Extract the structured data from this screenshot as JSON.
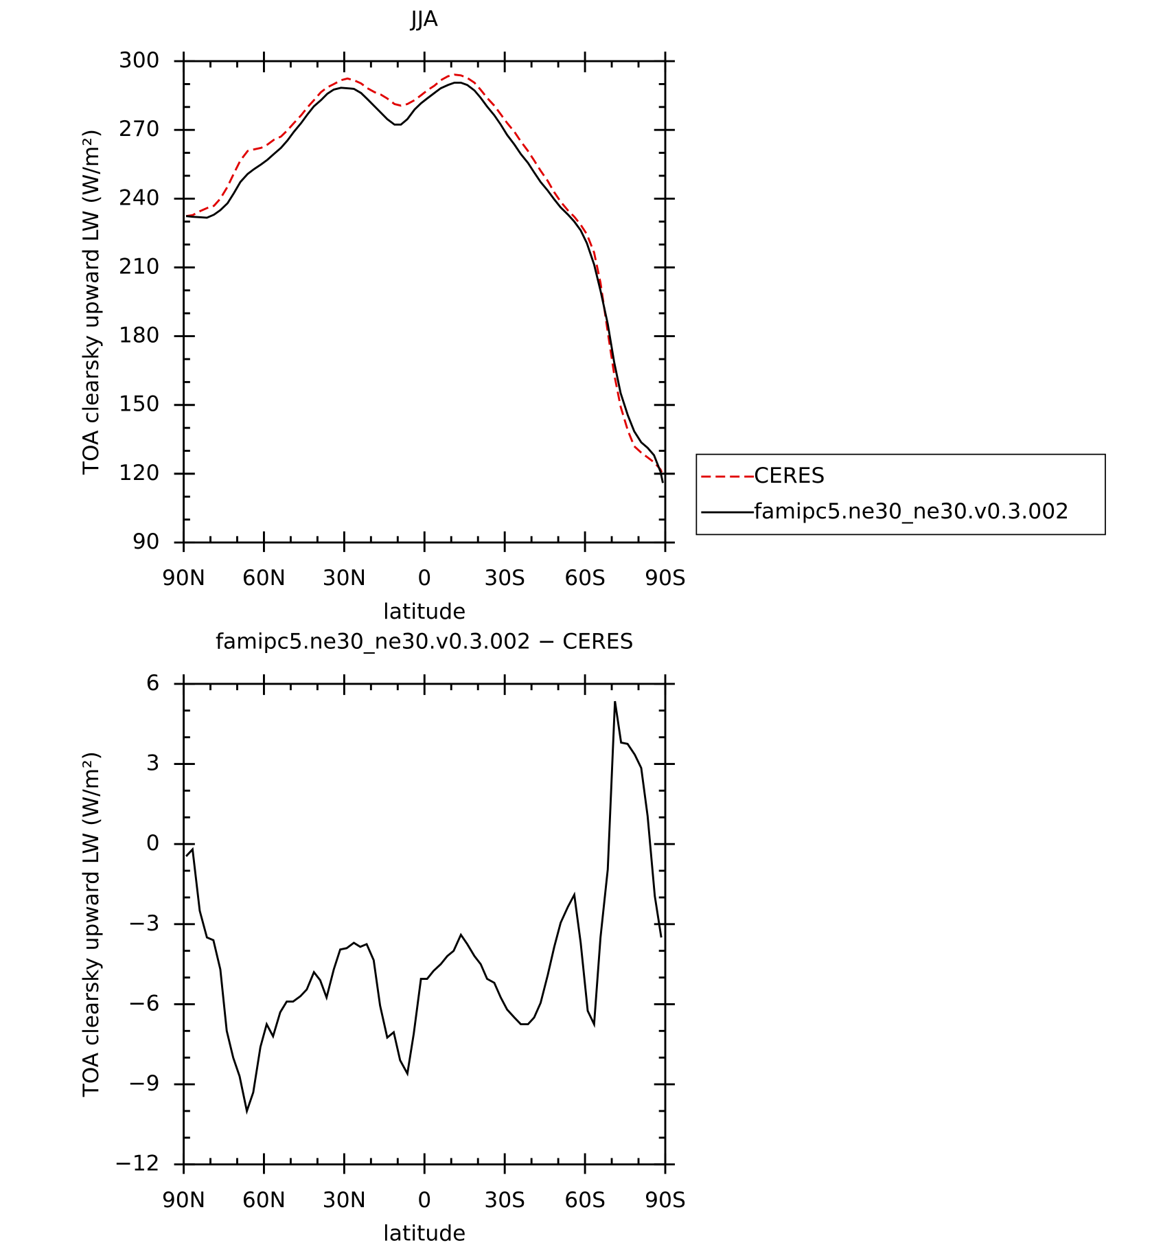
{
  "chart_data": [
    {
      "type": "line",
      "title": "JJA",
      "xlabel": "latitude",
      "ylabel": "TOA clearsky upward LW (W/m²)",
      "xlim": [
        90,
        -90
      ],
      "xticks": [
        {
          "value": 90,
          "label": "90N"
        },
        {
          "value": 60,
          "label": "60N"
        },
        {
          "value": 30,
          "label": "30N"
        },
        0,
        {
          "value": -30,
          "label": "30S"
        },
        {
          "value": -60,
          "label": "60S"
        },
        {
          "value": -90,
          "label": "90S"
        }
      ],
      "ylim": [
        90,
        300
      ],
      "yticks": [
        90,
        120,
        150,
        180,
        210,
        240,
        270,
        300
      ],
      "legend": "right",
      "x": [
        89.1,
        86.7,
        84.0,
        81.3,
        78.7,
        76.3,
        73.6,
        71.2,
        68.8,
        66.1,
        63.7,
        61.0,
        58.7,
        56.3,
        53.6,
        51.2,
        48.8,
        46.1,
        43.7,
        41.3,
        38.7,
        36.3,
        33.9,
        31.2,
        28.8,
        26.4,
        23.7,
        21.3,
        18.7,
        16.3,
        13.9,
        11.2,
        8.8,
        6.4,
        3.7,
        1.3,
        -1.0,
        -3.7,
        -6.1,
        -8.8,
        -11.2,
        -13.6,
        -16.0,
        -18.7,
        -21.0,
        -23.4,
        -26.1,
        -28.5,
        -30.9,
        -33.6,
        -36.0,
        -38.7,
        -41.0,
        -43.4,
        -46.1,
        -48.5,
        -50.9,
        -53.6,
        -56.0,
        -58.4,
        -60.7,
        -63.4,
        -65.8,
        -68.5,
        -70.9,
        -73.3,
        -76.0,
        -78.4,
        -81.0,
        -83.4,
        -85.8,
        -88.2,
        -89.1
      ],
      "series": [
        {
          "name": "CERES",
          "color": "#e00000",
          "style": "dashed",
          "values": [
            232.4,
            232.8,
            234.5,
            235.9,
            236.9,
            240,
            245.2,
            251.1,
            256.7,
            260.8,
            261.5,
            262.2,
            263.6,
            265.7,
            267.1,
            269.9,
            273,
            276.4,
            279.9,
            283,
            286.5,
            288.6,
            290,
            291.7,
            292.4,
            291.7,
            290.3,
            288.2,
            286.5,
            285.4,
            283.7,
            281.3,
            280.6,
            281.3,
            283,
            285.1,
            287.2,
            289.3,
            291.7,
            293.4,
            294.1,
            293.8,
            292.7,
            290.6,
            287.5,
            284,
            280.6,
            276.8,
            273,
            269.2,
            265,
            260.8,
            256.7,
            252.2,
            247.7,
            242.8,
            238.7,
            234.9,
            232.1,
            228.6,
            224.5,
            216.5,
            203.3,
            181.8,
            163.5,
            149.3,
            138.9,
            132,
            129.2,
            127.1,
            125,
            121.9,
            119.5
          ]
        },
        {
          "name": "famipc5.ne30_ne30.v0.3.002",
          "color": "#000000",
          "style": "solid",
          "values": [
            232.4,
            232.1,
            231.9,
            231.7,
            233,
            235,
            238,
            242.5,
            247.3,
            250.8,
            252.9,
            255,
            257,
            259.5,
            262.2,
            265.4,
            269.2,
            273,
            276.8,
            280.3,
            283,
            285.8,
            287.6,
            288.4,
            288.2,
            287.9,
            286.1,
            283.4,
            280.3,
            277.5,
            274.7,
            272.3,
            272.3,
            274.7,
            278.9,
            281.6,
            283.7,
            286.1,
            288.2,
            289.6,
            290.6,
            290.6,
            289.6,
            287.2,
            284,
            280.2,
            276.4,
            272.3,
            267.8,
            263.6,
            259.5,
            255.6,
            251.5,
            247.3,
            243.5,
            239.7,
            236.2,
            233.1,
            230,
            226.2,
            220.6,
            211.3,
            199.9,
            185.3,
            168.7,
            155.2,
            145.5,
            138.5,
            133.7,
            131.3,
            128.1,
            120.9,
            116
          ]
        }
      ]
    },
    {
      "type": "line",
      "title": "famipc5.ne30_ne30.v0.3.002 − CERES",
      "xlabel": "latitude",
      "ylabel": "TOA clearsky upward LW (W/m²)",
      "xlim": [
        90,
        -90
      ],
      "xticks": [
        {
          "value": 90,
          "label": "90N"
        },
        {
          "value": 60,
          "label": "60N"
        },
        {
          "value": 30,
          "label": "30N"
        },
        0,
        {
          "value": -30,
          "label": "30S"
        },
        {
          "value": -60,
          "label": "60S"
        },
        {
          "value": -90,
          "label": "90S"
        }
      ],
      "ylim": [
        -12,
        6
      ],
      "yticks": [
        {
          "value": -12,
          "label": "−12"
        },
        {
          "value": -9,
          "label": "−9"
        },
        {
          "value": -6,
          "label": "−6"
        },
        {
          "value": -3,
          "label": "−3"
        },
        0,
        3,
        6
      ],
      "x": [
        89.1,
        86.7,
        84.0,
        81.3,
        78.9,
        76.3,
        73.9,
        71.5,
        69.1,
        66.4,
        64.0,
        61.3,
        59.0,
        56.6,
        53.9,
        51.5,
        49.1,
        46.4,
        44.0,
        41.3,
        39.0,
        36.6,
        33.9,
        31.5,
        29.1,
        26.4,
        24.0,
        21.6,
        19.0,
        16.6,
        13.9,
        11.5,
        9.1,
        6.4,
        4.0,
        1.3,
        -1.0,
        -3.4,
        -6.1,
        -8.5,
        -10.9,
        -13.6,
        -16.0,
        -18.7,
        -21.0,
        -23.4,
        -26.1,
        -28.5,
        -30.9,
        -33.6,
        -36.0,
        -38.7,
        -41.0,
        -43.4,
        -46.1,
        -48.5,
        -50.9,
        -53.6,
        -56.0,
        -58.4,
        -61.0,
        -63.4,
        -65.8,
        -68.5,
        -71.2,
        -73.5,
        -75.9,
        -78.6,
        -81.0,
        -83.4,
        -86.1,
        -88.5
      ],
      "series": [
        {
          "name": "famipc5.ne30_ne30.v0.3.002 − CERES",
          "color": "#000000",
          "style": "solid",
          "values": [
            -0.46,
            -0.2,
            -2.5,
            -3.5,
            -3.6,
            -4.7,
            -7,
            -8,
            -8.7,
            -10,
            -9.3,
            -7.6,
            -6.75,
            -7.2,
            -6.3,
            -5.9,
            -5.9,
            -5.7,
            -5.45,
            -4.8,
            -5.1,
            -5.75,
            -4.7,
            -3.95,
            -3.9,
            -3.7,
            -3.85,
            -3.75,
            -4.35,
            -6.05,
            -7.25,
            -7.05,
            -8.1,
            -8.6,
            -7.1,
            -5.05,
            -5.05,
            -4.75,
            -4.5,
            -4.2,
            -4.0,
            -3.4,
            -3.75,
            -4.2,
            -4.5,
            -5.05,
            -5.2,
            -5.75,
            -6.2,
            -6.5,
            -6.75,
            -6.75,
            -6.5,
            -5.95,
            -4.9,
            -3.85,
            -2.95,
            -2.35,
            -1.9,
            -3.7,
            -6.25,
            -6.75,
            -3.5,
            -0.95,
            5.35,
            3.8,
            3.75,
            3.35,
            2.85,
            1.05,
            -1.95,
            -3.5
          ]
        }
      ]
    }
  ]
}
